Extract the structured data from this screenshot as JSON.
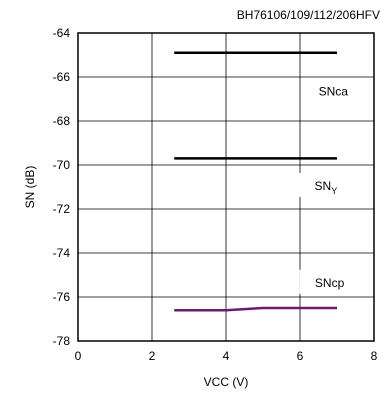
{
  "chart_data": {
    "type": "line",
    "title": "BH76106/109/112/206HFV",
    "xlabel": "VCC (V)",
    "ylabel": "SN (dB)",
    "xlim": [
      0,
      8
    ],
    "ylim": [
      -78,
      -64
    ],
    "x_ticks": [
      "0",
      "2",
      "4",
      "6",
      "8"
    ],
    "y_ticks": [
      "-64",
      "-66",
      "-68",
      "-70",
      "-72",
      "-74",
      "-76",
      "-78"
    ],
    "grid": true,
    "series": [
      {
        "name": "SNca",
        "color": "#000000",
        "x": [
          2.6,
          7.0
        ],
        "y": [
          -64.9,
          -64.9
        ]
      },
      {
        "name": "SNY",
        "color": "#000000",
        "x": [
          2.6,
          7.0
        ],
        "y": [
          -69.7,
          -69.7
        ]
      },
      {
        "name": "SNcp",
        "color": "#6a1b6e",
        "x": [
          2.6,
          4.0,
          5.0,
          7.0
        ],
        "y": [
          -76.6,
          -76.6,
          -76.5,
          -76.5
        ]
      }
    ],
    "annotations": [
      {
        "text": "SNca",
        "x": 6.9,
        "y": -66.7
      },
      {
        "text": "SN",
        "subscript": "Y",
        "x": 6.7,
        "y": -71.0
      },
      {
        "text": "SNcp",
        "x": 6.8,
        "y": -75.4
      }
    ]
  }
}
